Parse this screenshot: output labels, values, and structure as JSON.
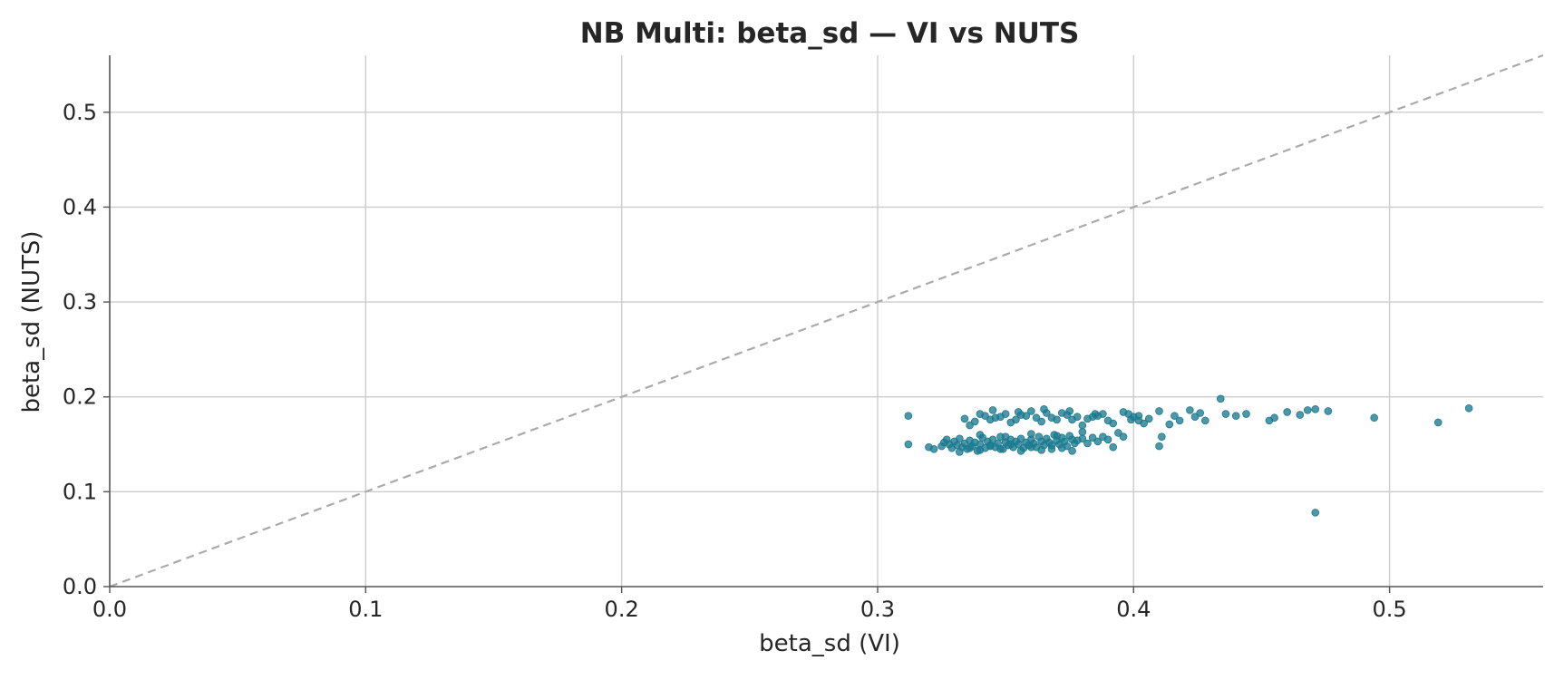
{
  "chart_data": {
    "type": "scatter",
    "title": "NB Multi: beta_sd — VI vs NUTS",
    "xlabel": "beta_sd (VI)",
    "ylabel": "beta_sd (NUTS)",
    "xlim": [
      0.0,
      0.56
    ],
    "ylim": [
      0.0,
      0.56
    ],
    "xticks": [
      0.0,
      0.1,
      0.2,
      0.3,
      0.4,
      0.5
    ],
    "yticks": [
      0.0,
      0.1,
      0.2,
      0.3,
      0.4,
      0.5
    ],
    "xtick_labels": [
      "0.0",
      "0.1",
      "0.2",
      "0.3",
      "0.4",
      "0.5"
    ],
    "ytick_labels": [
      "0.0",
      "0.1",
      "0.2",
      "0.3",
      "0.4",
      "0.5"
    ],
    "grid": true,
    "reference_line": {
      "type": "identity",
      "style": "dashed",
      "color": "#aaaaaa"
    },
    "point_color": "#1b7a8f",
    "series": [
      {
        "x": [
          0.312,
          0.312,
          0.32,
          0.322,
          0.325,
          0.326,
          0.327,
          0.328,
          0.329,
          0.33,
          0.331,
          0.332,
          0.333,
          0.334,
          0.335,
          0.336,
          0.337,
          0.338,
          0.339,
          0.34,
          0.341,
          0.342,
          0.343,
          0.344,
          0.345,
          0.346,
          0.347,
          0.348,
          0.349,
          0.35,
          0.351,
          0.352,
          0.353,
          0.354,
          0.355,
          0.356,
          0.357,
          0.358,
          0.359,
          0.36,
          0.361,
          0.362,
          0.363,
          0.364,
          0.365,
          0.366,
          0.367,
          0.368,
          0.369,
          0.37,
          0.371,
          0.372,
          0.373,
          0.374,
          0.375,
          0.376,
          0.377,
          0.378,
          0.38,
          0.382,
          0.384,
          0.386,
          0.388,
          0.39,
          0.392,
          0.394,
          0.396,
          0.398,
          0.4,
          0.402,
          0.404,
          0.406,
          0.41,
          0.411,
          0.41,
          0.414,
          0.416,
          0.418,
          0.422,
          0.424,
          0.426,
          0.428,
          0.434,
          0.436,
          0.44,
          0.444,
          0.453,
          0.455,
          0.46,
          0.465,
          0.468,
          0.471,
          0.476,
          0.494,
          0.519,
          0.531,
          0.471,
          0.338,
          0.342,
          0.346,
          0.35,
          0.354,
          0.358,
          0.362,
          0.366,
          0.37,
          0.374,
          0.378,
          0.382,
          0.386,
          0.39,
          0.334,
          0.336,
          0.34,
          0.344,
          0.348,
          0.352,
          0.356,
          0.36,
          0.364,
          0.368,
          0.372,
          0.376,
          0.38,
          0.384,
          0.388,
          0.392,
          0.396,
          0.399,
          0.402,
          0.332,
          0.336,
          0.34,
          0.344,
          0.348,
          0.352,
          0.356,
          0.36,
          0.364,
          0.368,
          0.372,
          0.376,
          0.34,
          0.35,
          0.36,
          0.37,
          0.38,
          0.345,
          0.355,
          0.365,
          0.375,
          0.385
        ],
        "y": [
          0.18,
          0.15,
          0.147,
          0.145,
          0.148,
          0.152,
          0.155,
          0.15,
          0.146,
          0.153,
          0.149,
          0.156,
          0.147,
          0.151,
          0.145,
          0.154,
          0.148,
          0.152,
          0.143,
          0.15,
          0.157,
          0.146,
          0.153,
          0.149,
          0.155,
          0.147,
          0.151,
          0.158,
          0.145,
          0.152,
          0.149,
          0.155,
          0.147,
          0.153,
          0.15,
          0.156,
          0.146,
          0.152,
          0.149,
          0.155,
          0.151,
          0.147,
          0.158,
          0.153,
          0.149,
          0.156,
          0.152,
          0.145,
          0.16,
          0.154,
          0.15,
          0.157,
          0.153,
          0.148,
          0.159,
          0.155,
          0.151,
          0.154,
          0.156,
          0.151,
          0.157,
          0.153,
          0.158,
          0.155,
          0.147,
          0.162,
          0.158,
          0.182,
          0.179,
          0.175,
          0.172,
          0.177,
          0.185,
          0.158,
          0.148,
          0.171,
          0.18,
          0.175,
          0.186,
          0.179,
          0.183,
          0.175,
          0.198,
          0.182,
          0.18,
          0.182,
          0.175,
          0.178,
          0.184,
          0.181,
          0.186,
          0.187,
          0.185,
          0.178,
          0.173,
          0.188,
          0.078,
          0.174,
          0.18,
          0.178,
          0.182,
          0.176,
          0.18,
          0.178,
          0.183,
          0.176,
          0.181,
          0.179,
          0.177,
          0.18,
          0.175,
          0.177,
          0.17,
          0.182,
          0.176,
          0.179,
          0.173,
          0.181,
          0.185,
          0.174,
          0.178,
          0.183,
          0.176,
          0.17,
          0.179,
          0.182,
          0.172,
          0.184,
          0.176,
          0.18,
          0.142,
          0.146,
          0.144,
          0.148,
          0.145,
          0.15,
          0.143,
          0.147,
          0.144,
          0.149,
          0.146,
          0.143,
          0.16,
          0.158,
          0.161,
          0.159,
          0.163,
          0.186,
          0.184,
          0.187,
          0.185,
          0.182
        ]
      }
    ]
  }
}
